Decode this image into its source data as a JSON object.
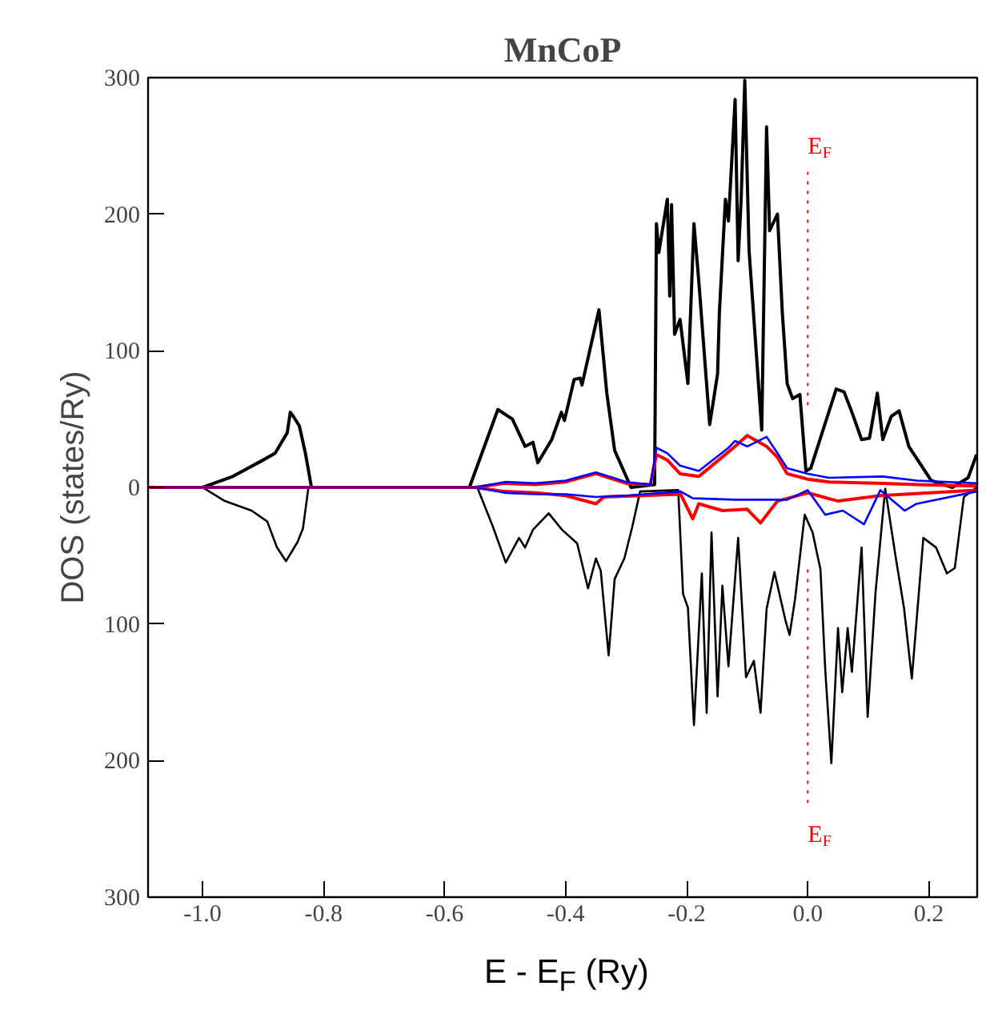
{
  "chart_data": {
    "type": "line",
    "title": "MnCoP",
    "xlabel": "E - E$_{F}$ (Ry)",
    "ylabel": "DOS (states/Ry)",
    "xlim": [
      -1.09,
      0.28
    ],
    "xticks": [
      {
        "value": -1.0,
        "label": "-1.0"
      },
      {
        "value": -0.8,
        "label": "-0.8"
      },
      {
        "value": -0.6,
        "label": "-0.6"
      },
      {
        "value": -0.4,
        "label": "-0.4"
      },
      {
        "value": -0.2,
        "label": "-0.2"
      },
      {
        "value": 0.0,
        "label": "0.0"
      },
      {
        "value": 0.2,
        "label": "0.2"
      }
    ],
    "ylim": [
      -300,
      300
    ],
    "yticks": [
      {
        "value": -300,
        "label": "300"
      },
      {
        "value": -200,
        "label": "200"
      },
      {
        "value": -100,
        "label": "100"
      },
      0,
      100,
      200,
      300
    ],
    "grid": false,
    "marker": "none",
    "line_style": "solid",
    "ref_lines": [
      {
        "axis": "x",
        "value": 0,
        "label": "E$_{F}$",
        "color": "#ff0000",
        "line_style": "dotted"
      }
    ],
    "series": [
      {
        "color": "#000000",
        "x": [
          -1.09,
          -1.0,
          -0.95,
          -0.9,
          -0.88,
          -0.86,
          -0.855,
          -0.85,
          -0.84,
          -0.83,
          -0.82,
          -0.559,
          -0.512,
          -0.488,
          -0.467,
          -0.454,
          -0.446,
          -0.423,
          -0.407,
          -0.402,
          -0.386,
          -0.376,
          -0.373,
          -0.345,
          -0.332,
          -0.319,
          -0.292,
          -0.253,
          -0.25,
          -0.246,
          -0.232,
          -0.228,
          -0.225,
          -0.22,
          -0.211,
          -0.198,
          -0.188,
          -0.18,
          -0.162,
          -0.149,
          -0.146,
          -0.136,
          -0.131,
          -0.12,
          -0.115,
          -0.11,
          -0.104,
          -0.097,
          -0.076,
          -0.068,
          -0.063,
          -0.05,
          -0.042,
          -0.034,
          -0.025,
          -0.013,
          -0.003,
          0.005,
          0.047,
          0.06,
          0.073,
          0.089,
          0.102,
          0.115,
          0.124,
          0.138,
          0.151,
          0.167,
          0.204,
          0.239,
          0.265,
          0.279
        ],
        "values": [
          0,
          0,
          8,
          20,
          25,
          40,
          55,
          52,
          45,
          25,
          0,
          0,
          57,
          50,
          30,
          33,
          18,
          35,
          55,
          49,
          79,
          80,
          75,
          130,
          69,
          27,
          0,
          2,
          193,
          172,
          211,
          140,
          207,
          112,
          123,
          76,
          193,
          151,
          46,
          83,
          128,
          211,
          195,
          284,
          166,
          211,
          298,
          174,
          42,
          264,
          188,
          200,
          128,
          76,
          65,
          68,
          12,
          14,
          72,
          70,
          55,
          35,
          36,
          69,
          35,
          52,
          56,
          30,
          5,
          0,
          7,
          24
        ]
      },
      {
        "color": "#000000",
        "x": [
          -1.09,
          -1.0,
          -0.963,
          -0.919,
          -0.893,
          -0.877,
          -0.862,
          -0.843,
          -0.834,
          -0.825,
          -0.546,
          -0.52,
          -0.499,
          -0.477,
          -0.467,
          -0.454,
          -0.428,
          -0.406,
          -0.381,
          -0.363,
          -0.35,
          -0.342,
          -0.329,
          -0.319,
          -0.303,
          -0.29,
          -0.277,
          -0.214,
          -0.206,
          -0.198,
          -0.188,
          -0.175,
          -0.167,
          -0.159,
          -0.149,
          -0.141,
          -0.131,
          -0.115,
          -0.102,
          -0.089,
          -0.078,
          -0.068,
          -0.055,
          -0.037,
          -0.03,
          -0.021,
          -0.005,
          0.008,
          0.021,
          0.029,
          0.039,
          0.05,
          0.057,
          0.066,
          0.073,
          0.089,
          0.099,
          0.112,
          0.128,
          0.146,
          0.159,
          0.172,
          0.191,
          0.212,
          0.23,
          0.243,
          0.258,
          0.279
        ],
        "values": [
          0,
          0,
          -10,
          -17,
          -25,
          -44,
          -54,
          -40,
          -30,
          0,
          0,
          -29,
          -55,
          -37,
          -44,
          -31,
          -19,
          -31,
          -41,
          -74,
          -52,
          -61,
          -123,
          -67,
          -52,
          -29,
          -3,
          -2,
          -78,
          -88,
          -174,
          -63,
          -165,
          -33,
          -153,
          -72,
          -131,
          -37,
          -139,
          -127,
          -165,
          -89,
          -62,
          -97,
          -108,
          -82,
          -20,
          -33,
          -60,
          -134,
          -202,
          -103,
          -150,
          -103,
          -135,
          -44,
          -168,
          -77,
          -1,
          -53,
          -88,
          -140,
          -37,
          -44,
          -63,
          -59,
          -7,
          0
        ]
      },
      {
        "color": "#ff0000",
        "x": [
          -1.09,
          -0.55,
          -0.5,
          -0.45,
          -0.4,
          -0.35,
          -0.3,
          -0.26,
          -0.25,
          -0.232,
          -0.211,
          -0.18,
          -0.131,
          -0.12,
          -0.1,
          -0.068,
          -0.05,
          -0.034,
          0.0,
          0.035,
          0.124,
          0.18,
          0.279
        ],
        "values": [
          0,
          0,
          3,
          2,
          4,
          10,
          3,
          2,
          24,
          20,
          10,
          8,
          26,
          30,
          38,
          30,
          22,
          10,
          6,
          4,
          3,
          2,
          1
        ]
      },
      {
        "color": "#0000ff",
        "x": [
          -1.09,
          -0.55,
          -0.5,
          -0.45,
          -0.4,
          -0.35,
          -0.3,
          -0.26,
          -0.25,
          -0.232,
          -0.211,
          -0.18,
          -0.131,
          -0.12,
          -0.1,
          -0.068,
          -0.05,
          -0.034,
          0.0,
          0.035,
          0.124,
          0.18,
          0.279
        ],
        "values": [
          0,
          0,
          4,
          3,
          5,
          11,
          4,
          2,
          29,
          25,
          16,
          12,
          29,
          34,
          30,
          37,
          25,
          14,
          10,
          7,
          8,
          5,
          3
        ]
      },
      {
        "color": "#ff0000",
        "x": [
          -1.09,
          -0.55,
          -0.5,
          -0.45,
          -0.4,
          -0.35,
          -0.337,
          -0.21,
          -0.19,
          -0.18,
          -0.141,
          -0.1,
          -0.078,
          -0.05,
          0.0,
          0.05,
          0.12,
          0.279
        ],
        "values": [
          0,
          0,
          -3,
          -4,
          -6,
          -12,
          -7,
          -5,
          -23,
          -12,
          -17,
          -16,
          -26,
          -10,
          -4,
          -10,
          -6,
          -2
        ]
      },
      {
        "color": "#0000ff",
        "x": [
          -1.09,
          -0.55,
          -0.5,
          -0.45,
          -0.4,
          -0.35,
          -0.3,
          -0.21,
          -0.19,
          -0.12,
          -0.034,
          0.0,
          0.029,
          0.058,
          0.093,
          0.12,
          0.16,
          0.18,
          0.279
        ],
        "values": [
          0,
          0,
          -4,
          -5,
          -5,
          -7,
          -6,
          -3,
          -8,
          -9,
          -9,
          -2,
          -20,
          -17,
          -27,
          -2,
          -17,
          -12,
          -3
        ]
      }
    ]
  }
}
